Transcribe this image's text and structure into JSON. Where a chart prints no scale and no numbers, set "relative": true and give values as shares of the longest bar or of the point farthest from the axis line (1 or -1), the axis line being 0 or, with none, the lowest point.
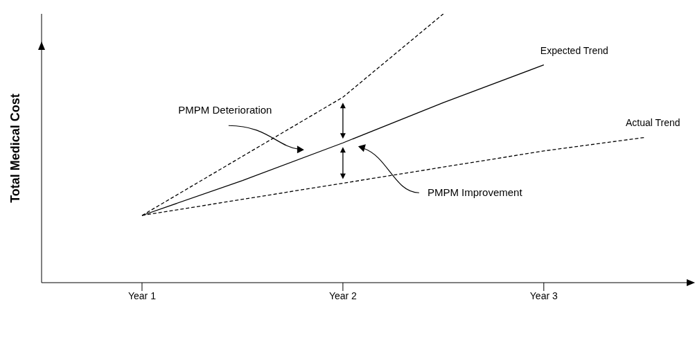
{
  "chart_data": {
    "type": "line",
    "relative": true,
    "ylabel": "Total Medical Cost",
    "categories": [
      null,
      "Year 1",
      null,
      "Year 2",
      null,
      "Year 3",
      null
    ],
    "series": [
      {
        "color": "#000000",
        "line_style": "dashed",
        "values": [
          null,
          0.25,
          0.47,
          0.69,
          1,
          null,
          null
        ]
      },
      {
        "name": "Expected Trend",
        "color": "#000000",
        "line_style": "solid",
        "values": [
          null,
          0.25,
          0.38,
          0.52,
          0.67,
          0.81,
          null
        ]
      },
      {
        "name": "Actual Trend",
        "color": "#000000",
        "line_style": "dashed",
        "values": [
          null,
          0.25,
          0.31,
          0.37,
          0.43,
          0.49,
          0.54
        ]
      }
    ],
    "annotations": [
      "PMPM Deterioration",
      "PMPM Improvement"
    ]
  }
}
